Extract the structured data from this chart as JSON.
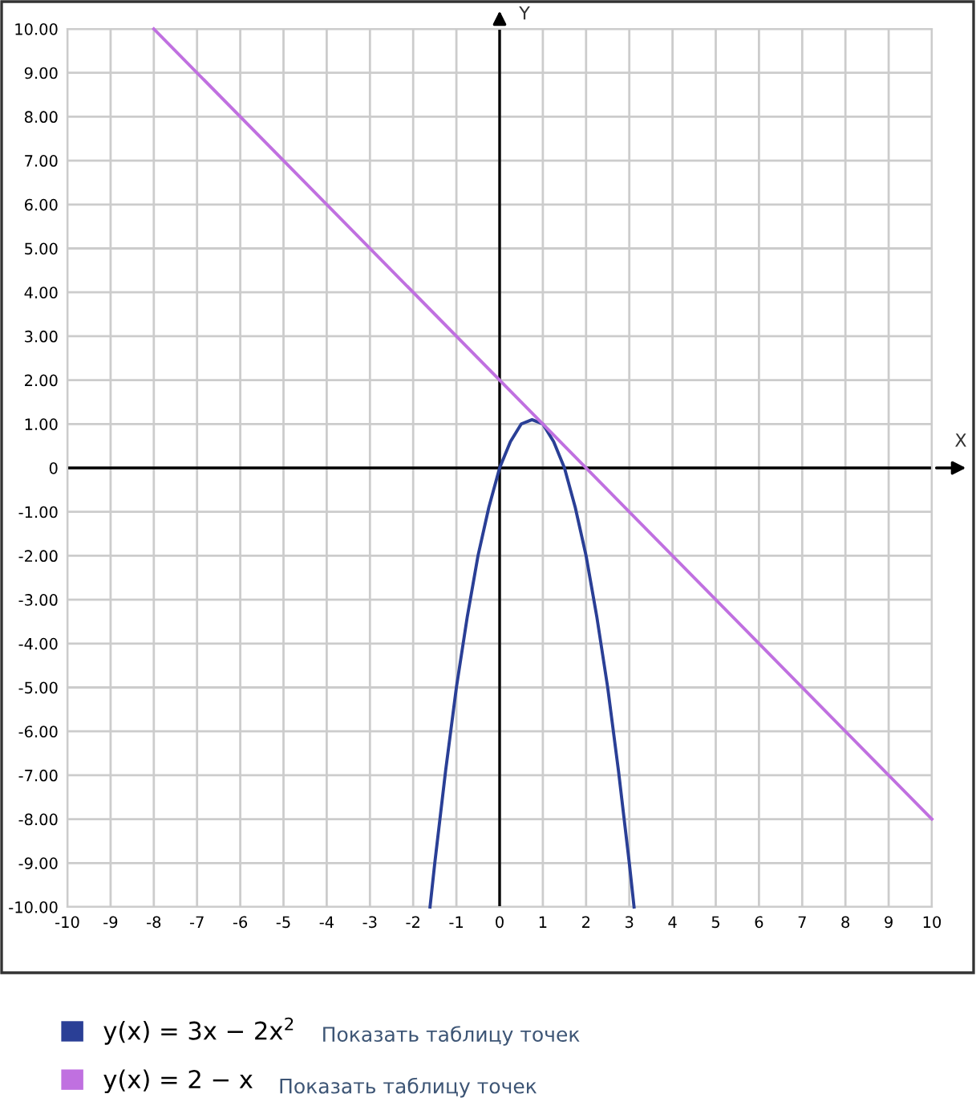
{
  "chart_data": {
    "type": "line",
    "xlabel": "X",
    "ylabel": "Y",
    "xlim": [
      -10,
      10
    ],
    "ylim": [
      -10,
      10
    ],
    "xticks": [
      -10,
      -9,
      -8,
      -7,
      -6,
      -5,
      -4,
      -3,
      -2,
      -1,
      0,
      1,
      2,
      3,
      4,
      5,
      6,
      7,
      8,
      9,
      10
    ],
    "yticks": [
      {
        "value": 10,
        "label": "10.00"
      },
      {
        "value": 9,
        "label": "9.00"
      },
      {
        "value": 8,
        "label": "8.00"
      },
      {
        "value": 7,
        "label": "7.00"
      },
      {
        "value": 6,
        "label": "6.00"
      },
      {
        "value": 5,
        "label": "5.00"
      },
      {
        "value": 4,
        "label": "4.00"
      },
      {
        "value": 3,
        "label": "3.00"
      },
      {
        "value": 2,
        "label": "2.00"
      },
      {
        "value": 1,
        "label": "1.00"
      },
      0,
      {
        "value": -1,
        "label": "-1.00"
      },
      {
        "value": -2,
        "label": "-2.00"
      },
      {
        "value": -3,
        "label": "-3.00"
      },
      {
        "value": -4,
        "label": "-4.00"
      },
      {
        "value": -5,
        "label": "-5.00"
      },
      {
        "value": -6,
        "label": "-6.00"
      },
      {
        "value": -7,
        "label": "-7.00"
      },
      {
        "value": -8,
        "label": "-8.00"
      },
      {
        "value": -9,
        "label": "-9.00"
      },
      {
        "value": -10,
        "label": "-10.00"
      }
    ],
    "grid": true,
    "legend": "bottom",
    "marker": "none",
    "line_style": "solid",
    "series": [
      {
        "name": "y(x) = 3x − 2x$^{2}$",
        "color": "#2a3f96",
        "x": [
          -1.61,
          -1.5,
          -1.25,
          -1,
          -0.75,
          -0.5,
          -0.25,
          0,
          0.25,
          0.5,
          0.75,
          1,
          1.25,
          1.5,
          1.75,
          2,
          2.25,
          2.5,
          2.75,
          3,
          3.11
        ],
        "values": [
          -10,
          -9,
          -6.9,
          -5,
          -3.4,
          -2,
          -0.9,
          0,
          0.6,
          1,
          1.1,
          1,
          0.6,
          0,
          -0.9,
          -2,
          -3.4,
          -5,
          -6.9,
          -9,
          -10
        ]
      },
      {
        "name": "y(x) = 2 − x",
        "color": "#c070e0",
        "x": [
          -8,
          10
        ],
        "values": [
          10,
          -8
        ]
      }
    ],
    "annotations": [
      "Показать таблицу точек",
      "Показать таблицу точек"
    ]
  }
}
